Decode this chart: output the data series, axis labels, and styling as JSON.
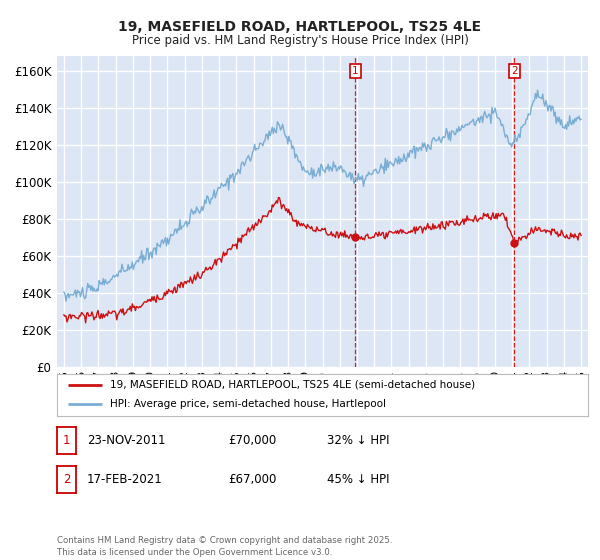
{
  "title_line1": "19, MASEFIELD ROAD, HARTLEPOOL, TS25 4LE",
  "title_line2": "Price paid vs. HM Land Registry's House Price Index (HPI)",
  "bg_color": "#dce6f5",
  "fig_bg_color": "#ffffff",
  "grid_color": "#ffffff",
  "hpi_color": "#7aadd4",
  "price_color": "#cc1111",
  "vline_color": "#cc0000",
  "dot_color": "#cc1111",
  "legend_label_price": "19, MASEFIELD ROAD, HARTLEPOOL, TS25 4LE (semi-detached house)",
  "legend_label_hpi": "HPI: Average price, semi-detached house, Hartlepool",
  "annotation1_label": "1",
  "annotation1_date": "23-NOV-2011",
  "annotation1_price": "£70,000",
  "annotation1_pct": "32% ↓ HPI",
  "annotation2_label": "2",
  "annotation2_date": "17-FEB-2021",
  "annotation2_price": "£67,000",
  "annotation2_pct": "45% ↓ HPI",
  "footer": "Contains HM Land Registry data © Crown copyright and database right 2025.\nThis data is licensed under the Open Government Licence v3.0.",
  "ylim": [
    0,
    168000
  ],
  "yticks": [
    0,
    20000,
    40000,
    60000,
    80000,
    100000,
    120000,
    140000,
    160000
  ],
  "vline1_x": 2011.9,
  "vline2_x": 2021.12,
  "sale1_price": 70000,
  "sale2_price": 67000,
  "xmin": 1994.6,
  "xmax": 2025.4
}
